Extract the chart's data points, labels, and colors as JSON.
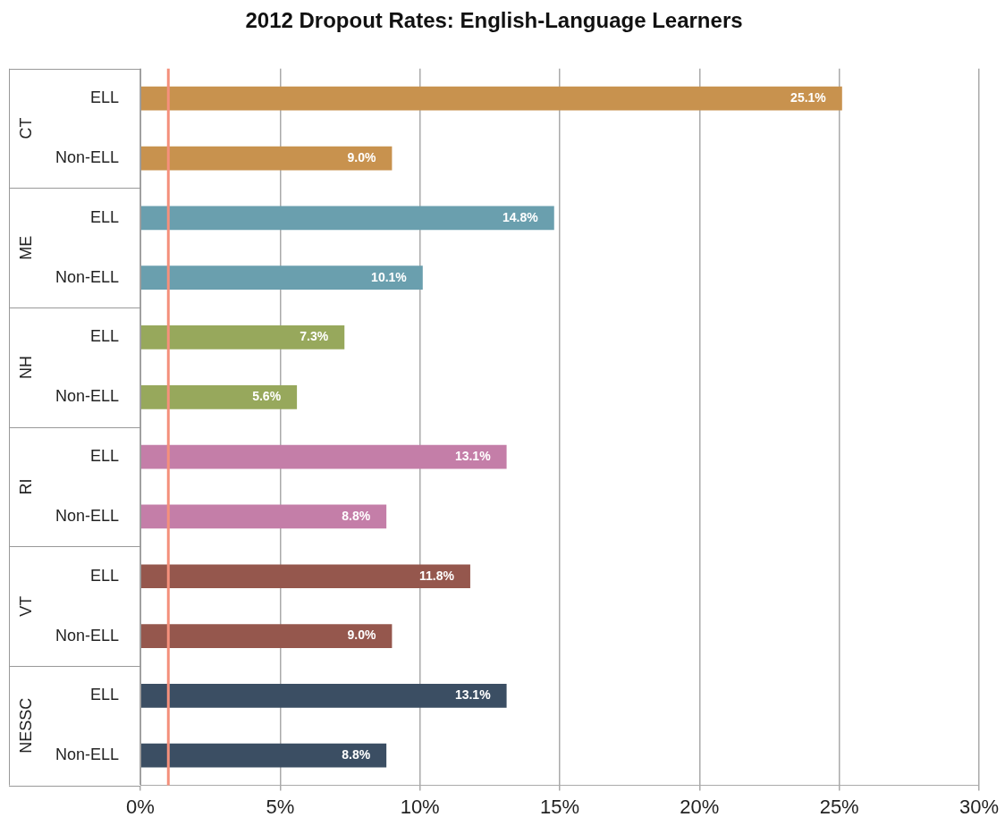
{
  "chart_data": {
    "type": "bar",
    "orientation": "horizontal",
    "title": "2012 Dropout Rates: English-Language Learners",
    "categories": [
      "ELL",
      "Non-ELL",
      "ELL",
      "Non-ELL",
      "ELL",
      "Non-ELL",
      "ELL",
      "Non-ELL",
      "ELL",
      "Non-ELL",
      "ELL",
      "Non-ELL"
    ],
    "values": [
      25.1,
      9.0,
      14.8,
      10.1,
      7.3,
      5.6,
      13.1,
      8.8,
      11.8,
      9.0,
      13.1,
      8.8
    ],
    "value_labels": [
      "25.1%",
      "9.0%",
      "14.8%",
      "10.1%",
      "7.3%",
      "5.6%",
      "13.1%",
      "8.8%",
      "11.8%",
      "9.0%",
      "13.1%",
      "8.8%"
    ],
    "colors": [
      "#c8924e",
      "#c8924e",
      "#6a9fae",
      "#6a9fae",
      "#97a85c",
      "#97a85c",
      "#c47ea8",
      "#c47ea8",
      "#95574d",
      "#95574d",
      "#3b4e63",
      "#3b4e63"
    ],
    "annotations": [
      "CT",
      "ME",
      "NH",
      "RI",
      "VT",
      "NESSC"
    ],
    "xlim": [
      0,
      30
    ],
    "xticks": [
      {
        "value": 0,
        "label": "0%"
      },
      {
        "value": 5,
        "label": "5%"
      },
      {
        "value": 10,
        "label": "10%"
      },
      {
        "value": 15,
        "label": "15%"
      },
      {
        "value": 20,
        "label": "20%"
      },
      {
        "value": 25,
        "label": "25%"
      },
      {
        "value": 30,
        "label": "30%"
      }
    ],
    "ref_lines": [
      {
        "axis": "x",
        "value": 1,
        "color": "#f4907c"
      }
    ],
    "grid": "x",
    "legend": false
  }
}
